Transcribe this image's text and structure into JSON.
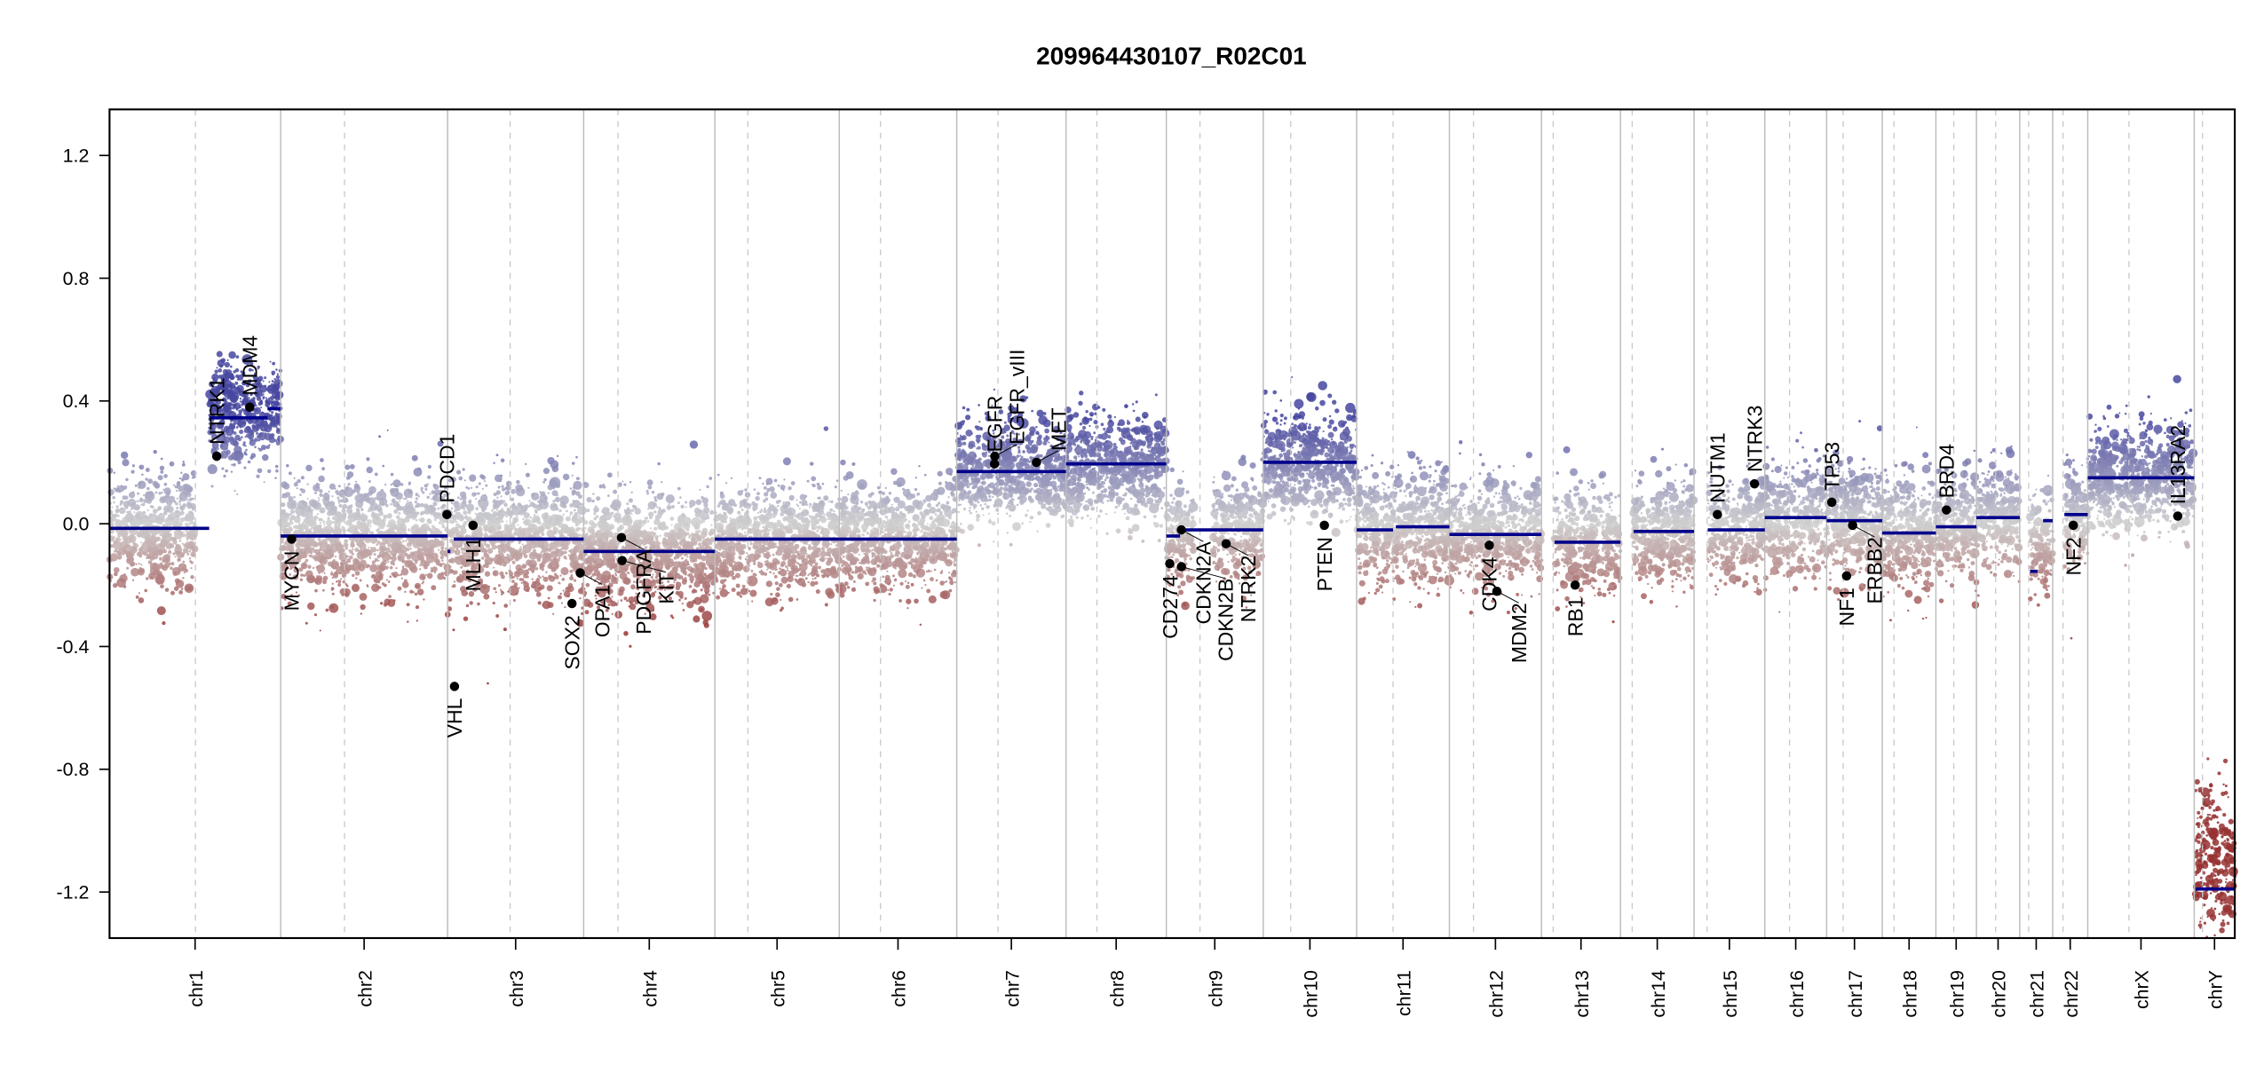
{
  "chart_data": {
    "type": "scatter",
    "title": "209964430107_R02C01",
    "xlabel": "",
    "ylabel": "",
    "ylim": [
      -1.35,
      1.35
    ],
    "yticks": [
      -1.2,
      -0.8,
      -0.4,
      0.0,
      0.4,
      0.8,
      1.2
    ],
    "ytick_labels": [
      "-1.2",
      "-0.8",
      "-0.4",
      "0.0",
      "0.4",
      "0.8",
      "1.2"
    ],
    "grid": false,
    "colors": {
      "gain": "#1a1a9a",
      "neutral": "#cfcfcf",
      "loss": "#8b1a1a",
      "segment": "#00008b",
      "gene_point": "#000000",
      "chrom_boundary": "#bdbdbd",
      "centromere": "#c8c8c8"
    },
    "chromosomes": [
      {
        "name": "chr1",
        "length": 249,
        "centromere": 125
      },
      {
        "name": "chr2",
        "length": 243,
        "centromere": 93
      },
      {
        "name": "chr3",
        "length": 198,
        "centromere": 91
      },
      {
        "name": "chr4",
        "length": 191,
        "centromere": 50
      },
      {
        "name": "chr5",
        "length": 181,
        "centromere": 48
      },
      {
        "name": "chr6",
        "length": 171,
        "centromere": 60
      },
      {
        "name": "chr7",
        "length": 159,
        "centromere": 60
      },
      {
        "name": "chr8",
        "length": 146,
        "centromere": 45
      },
      {
        "name": "chr9",
        "length": 141,
        "centromere": 49
      },
      {
        "name": "chr10",
        "length": 136,
        "centromere": 40
      },
      {
        "name": "chr11",
        "length": 135,
        "centromere": 53
      },
      {
        "name": "chr12",
        "length": 134,
        "centromere": 35
      },
      {
        "name": "chr13",
        "length": 115,
        "centromere": 17
      },
      {
        "name": "chr14",
        "length": 107,
        "centromere": 17
      },
      {
        "name": "chr15",
        "length": 103,
        "centromere": 19
      },
      {
        "name": "chr16",
        "length": 90,
        "centromere": 36
      },
      {
        "name": "chr17",
        "length": 81,
        "centromere": 24
      },
      {
        "name": "chr18",
        "length": 78,
        "centromere": 17
      },
      {
        "name": "chr19",
        "length": 59,
        "centromere": 26
      },
      {
        "name": "chr20",
        "length": 63,
        "centromere": 28
      },
      {
        "name": "chr21",
        "length": 48,
        "centromere": 13
      },
      {
        "name": "chr22",
        "length": 51,
        "centromere": 15
      },
      {
        "name": "chrX",
        "length": 155,
        "centromere": 60
      },
      {
        "name": "chrY",
        "length": 59,
        "centromere": 12
      }
    ],
    "segments": [
      {
        "chr": "chr1",
        "start": 0,
        "end": 145,
        "value": -0.015
      },
      {
        "chr": "chr1",
        "start": 145,
        "end": 230,
        "value": 0.345
      },
      {
        "chr": "chr1",
        "start": 230,
        "end": 249,
        "value": 0.375
      },
      {
        "chr": "chr2",
        "start": 0,
        "end": 243,
        "value": -0.04
      },
      {
        "chr": "chr3",
        "start": 0,
        "end": 4,
        "value": -0.09
      },
      {
        "chr": "chr3",
        "start": 9,
        "end": 198,
        "value": -0.05
      },
      {
        "chr": "chr4",
        "start": 0,
        "end": 191,
        "value": -0.09
      },
      {
        "chr": "chr5",
        "start": 0,
        "end": 181,
        "value": -0.05
      },
      {
        "chr": "chr6",
        "start": 0,
        "end": 171,
        "value": -0.05
      },
      {
        "chr": "chr7",
        "start": 0,
        "end": 159,
        "value": 0.17
      },
      {
        "chr": "chr8",
        "start": 0,
        "end": 146,
        "value": 0.195
      },
      {
        "chr": "chr9",
        "start": 0,
        "end": 20,
        "value": -0.04
      },
      {
        "chr": "chr9",
        "start": 22,
        "end": 141,
        "value": -0.02
      },
      {
        "chr": "chr10",
        "start": 0,
        "end": 136,
        "value": 0.2
      },
      {
        "chr": "chr11",
        "start": 0,
        "end": 53,
        "value": -0.02
      },
      {
        "chr": "chr11",
        "start": 57,
        "end": 135,
        "value": -0.01
      },
      {
        "chr": "chr12",
        "start": 0,
        "end": 134,
        "value": -0.035
      },
      {
        "chr": "chr13",
        "start": 19,
        "end": 115,
        "value": -0.06
      },
      {
        "chr": "chr14",
        "start": 19,
        "end": 107,
        "value": -0.025
      },
      {
        "chr": "chr15",
        "start": 20,
        "end": 103,
        "value": -0.02
      },
      {
        "chr": "chr16",
        "start": 0,
        "end": 90,
        "value": 0.02
      },
      {
        "chr": "chr17",
        "start": 0,
        "end": 81,
        "value": 0.01
      },
      {
        "chr": "chr18",
        "start": 0,
        "end": 78,
        "value": -0.03
      },
      {
        "chr": "chr19",
        "start": 0,
        "end": 59,
        "value": -0.01
      },
      {
        "chr": "chr20",
        "start": 0,
        "end": 63,
        "value": 0.02
      },
      {
        "chr": "chr21",
        "start": 15,
        "end": 26,
        "value": -0.155
      },
      {
        "chr": "chr21",
        "start": 34,
        "end": 48,
        "value": 0.01
      },
      {
        "chr": "chr22",
        "start": 17,
        "end": 51,
        "value": 0.03
      },
      {
        "chr": "chrX",
        "start": 0,
        "end": 155,
        "value": 0.15
      },
      {
        "chr": "chrY",
        "start": 2,
        "end": 59,
        "value": -1.19
      }
    ],
    "genes": [
      {
        "name": "NTRK1",
        "chr": "chr1",
        "pos": 156,
        "value": 0.22,
        "label_side": "above"
      },
      {
        "name": "MDM4",
        "chr": "chr1",
        "pos": 204,
        "value": 0.38,
        "label_side": "above"
      },
      {
        "name": "MYCN",
        "chr": "chr2",
        "pos": 16,
        "value": -0.05,
        "label_side": "below"
      },
      {
        "name": "PDCD1",
        "chr": "chr2",
        "pos": 242,
        "value": 0.03,
        "label_side": "above"
      },
      {
        "name": "VHL",
        "chr": "chr3",
        "pos": 10,
        "value": -0.53,
        "label_side": "below"
      },
      {
        "name": "MLH1",
        "chr": "chr3",
        "pos": 37,
        "value": -0.005,
        "label_side": "below"
      },
      {
        "name": "SOX2",
        "chr": "chr3",
        "pos": 181,
        "value": -0.26,
        "label_side": "below"
      },
      {
        "name": "OPA1",
        "chr": "chr3",
        "pos": 193,
        "value": -0.16,
        "label_side": "below"
      },
      {
        "name": "PDGFRA",
        "chr": "chr4",
        "pos": 55,
        "value": -0.045,
        "label_side": "below"
      },
      {
        "name": "KIT",
        "chr": "chr4",
        "pos": 56,
        "value": -0.12,
        "label_side": "below"
      },
      {
        "name": "EGFR",
        "chr": "chr7",
        "pos": 55,
        "value": 0.195,
        "label_side": "above"
      },
      {
        "name": "EGFR_vIII",
        "chr": "chr7",
        "pos": 55.3,
        "value": 0.22,
        "label_side": "above"
      },
      {
        "name": "MET",
        "chr": "chr7",
        "pos": 116,
        "value": 0.2,
        "label_side": "above"
      },
      {
        "name": "CD274",
        "chr": "chr9",
        "pos": 5,
        "value": -0.13,
        "label_side": "below"
      },
      {
        "name": "CDKN2A",
        "chr": "chr9",
        "pos": 21.9,
        "value": -0.02,
        "label_side": "below"
      },
      {
        "name": "CDKN2B",
        "chr": "chr9",
        "pos": 22,
        "value": -0.14,
        "label_side": "below"
      },
      {
        "name": "NTRK2",
        "chr": "chr9",
        "pos": 87,
        "value": -0.065,
        "label_side": "below"
      },
      {
        "name": "PTEN",
        "chr": "chr10",
        "pos": 89,
        "value": -0.005,
        "label_side": "below"
      },
      {
        "name": "CDK4",
        "chr": "chr12",
        "pos": 58,
        "value": -0.07,
        "label_side": "below"
      },
      {
        "name": "MDM2",
        "chr": "chr12",
        "pos": 69,
        "value": -0.22,
        "label_side": "below"
      },
      {
        "name": "RB1",
        "chr": "chr13",
        "pos": 49,
        "value": -0.2,
        "label_side": "below"
      },
      {
        "name": "NUTM1",
        "chr": "chr15",
        "pos": 34,
        "value": 0.03,
        "label_side": "above"
      },
      {
        "name": "NTRK3",
        "chr": "chr15",
        "pos": 88,
        "value": 0.13,
        "label_side": "above"
      },
      {
        "name": "TP53",
        "chr": "chr17",
        "pos": 7.5,
        "value": 0.07,
        "label_side": "above"
      },
      {
        "name": "NF1",
        "chr": "chr17",
        "pos": 29,
        "value": -0.17,
        "label_side": "below"
      },
      {
        "name": "ERBB2",
        "chr": "chr17",
        "pos": 37.8,
        "value": -0.005,
        "label_side": "below"
      },
      {
        "name": "BRD4",
        "chr": "chr19",
        "pos": 15.4,
        "value": 0.045,
        "label_side": "above"
      },
      {
        "name": "NF2",
        "chr": "chr22",
        "pos": 30,
        "value": -0.005,
        "label_side": "below"
      },
      {
        "name": "IL13RA2",
        "chr": "chrX",
        "pos": 131,
        "value": 0.025,
        "label_side": "above"
      }
    ],
    "point_profile": [
      {
        "chr": "chr1",
        "arm_values": [
          {
            "from": 0,
            "to": 125,
            "center": -0.02,
            "spread": 0.13
          },
          {
            "from": 145,
            "to": 249,
            "center": 0.36,
            "spread": 0.12
          }
        ]
      },
      {
        "chr": "chr2",
        "arm_values": [
          {
            "from": 0,
            "to": 243,
            "center": -0.04,
            "spread": 0.13
          }
        ]
      },
      {
        "chr": "chr3",
        "arm_values": [
          {
            "from": 0,
            "to": 198,
            "center": -0.05,
            "spread": 0.14
          }
        ]
      },
      {
        "chr": "chr4",
        "arm_values": [
          {
            "from": 0,
            "to": 191,
            "center": -0.09,
            "spread": 0.13
          }
        ]
      },
      {
        "chr": "chr5",
        "arm_values": [
          {
            "from": 0,
            "to": 181,
            "center": -0.05,
            "spread": 0.12
          }
        ]
      },
      {
        "chr": "chr6",
        "arm_values": [
          {
            "from": 0,
            "to": 171,
            "center": -0.05,
            "spread": 0.12
          }
        ]
      },
      {
        "chr": "chr7",
        "arm_values": [
          {
            "from": 0,
            "to": 159,
            "center": 0.17,
            "spread": 0.12
          }
        ]
      },
      {
        "chr": "chr8",
        "arm_values": [
          {
            "from": 0,
            "to": 146,
            "center": 0.19,
            "spread": 0.12
          }
        ]
      },
      {
        "chr": "chr9",
        "arm_values": [
          {
            "from": 0,
            "to": 40,
            "center": -0.04,
            "spread": 0.12
          },
          {
            "from": 68,
            "to": 141,
            "center": -0.02,
            "spread": 0.12
          }
        ]
      },
      {
        "chr": "chr10",
        "arm_values": [
          {
            "from": 0,
            "to": 136,
            "center": 0.2,
            "spread": 0.12
          }
        ]
      },
      {
        "chr": "chr11",
        "arm_values": [
          {
            "from": 0,
            "to": 135,
            "center": -0.02,
            "spread": 0.13
          }
        ]
      },
      {
        "chr": "chr12",
        "arm_values": [
          {
            "from": 0,
            "to": 134,
            "center": -0.035,
            "spread": 0.13
          }
        ]
      },
      {
        "chr": "chr13",
        "arm_values": [
          {
            "from": 19,
            "to": 115,
            "center": -0.06,
            "spread": 0.12
          }
        ]
      },
      {
        "chr": "chr14",
        "arm_values": [
          {
            "from": 19,
            "to": 107,
            "center": -0.025,
            "spread": 0.12
          }
        ]
      },
      {
        "chr": "chr15",
        "arm_values": [
          {
            "from": 20,
            "to": 103,
            "center": -0.02,
            "spread": 0.12
          }
        ]
      },
      {
        "chr": "chr16",
        "arm_values": [
          {
            "from": 0,
            "to": 90,
            "center": 0.02,
            "spread": 0.13
          }
        ]
      },
      {
        "chr": "chr17",
        "arm_values": [
          {
            "from": 0,
            "to": 81,
            "center": 0.01,
            "spread": 0.13
          }
        ]
      },
      {
        "chr": "chr18",
        "arm_values": [
          {
            "from": 0,
            "to": 78,
            "center": -0.03,
            "spread": 0.13
          }
        ]
      },
      {
        "chr": "chr19",
        "arm_values": [
          {
            "from": 0,
            "to": 59,
            "center": -0.01,
            "spread": 0.13
          }
        ]
      },
      {
        "chr": "chr20",
        "arm_values": [
          {
            "from": 0,
            "to": 63,
            "center": 0.02,
            "spread": 0.12
          }
        ]
      },
      {
        "chr": "chr21",
        "arm_values": [
          {
            "from": 15,
            "to": 48,
            "center": -0.05,
            "spread": 0.12
          }
        ]
      },
      {
        "chr": "chr22",
        "arm_values": [
          {
            "from": 17,
            "to": 51,
            "center": 0.03,
            "spread": 0.12
          }
        ]
      },
      {
        "chr": "chrX",
        "arm_values": [
          {
            "from": 0,
            "to": 155,
            "center": 0.15,
            "spread": 0.12
          }
        ]
      },
      {
        "chr": "chrY",
        "arm_values": [
          {
            "from": 2,
            "to": 59,
            "center": -1.1,
            "spread": 0.2
          }
        ]
      }
    ]
  }
}
